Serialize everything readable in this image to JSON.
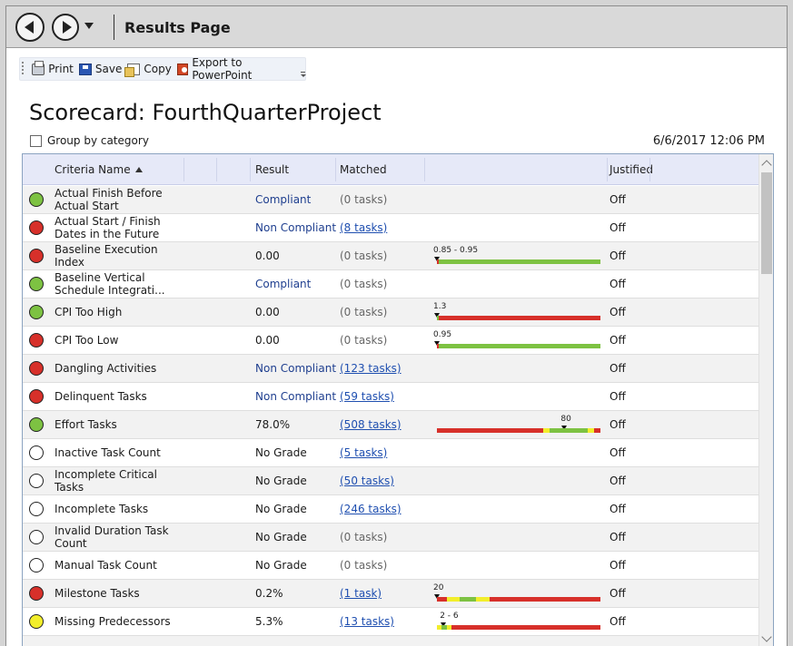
{
  "window": {
    "title": "Results Page"
  },
  "toolbar": {
    "print_label": "Print",
    "save_label": "Save",
    "copy_label": "Copy",
    "export_label": "Export to PowerPoint"
  },
  "scorecard": {
    "title": "Scorecard: FourthQuarterProject",
    "group_by_label": "Group by category",
    "group_by_checked": false,
    "date": "6/6/2017 12:06 PM"
  },
  "columns": {
    "name": "Criteria Name",
    "result": "Result",
    "matched": "Matched",
    "justified": "Justified"
  },
  "colors": {
    "green": "#7dc242",
    "red": "#d7302a",
    "yellow": "#f2ee2b",
    "link": "#1f4fb0"
  },
  "rows": [
    {
      "status": "green",
      "name": "Actual Finish Before Actual Start",
      "result": "Compliant",
      "matched": "(0 tasks)",
      "matched_link": false,
      "justified": "Off"
    },
    {
      "status": "red",
      "name": "Actual Start / Finish Dates in the Future",
      "result": "Non Compliant",
      "matched": "(8 tasks)",
      "matched_link": true,
      "justified": "Off"
    },
    {
      "status": "red",
      "name": "Baseline Execution Index",
      "result": "0.00",
      "matched": "(0 tasks)",
      "matched_link": false,
      "justified": "Off",
      "gauge": {
        "label": "0.85 - 0.95",
        "marker": 0.0,
        "segments": [
          {
            "color": "red",
            "fraction": 0.01
          },
          {
            "color": "green",
            "fraction": 0.99
          }
        ]
      }
    },
    {
      "status": "green",
      "name": "Baseline Vertical Schedule Integrati...",
      "result": "Compliant",
      "matched": "(0 tasks)",
      "matched_link": false,
      "justified": "Off"
    },
    {
      "status": "green",
      "name": "CPI Too High",
      "result": "0.00",
      "matched": "(0 tasks)",
      "matched_link": false,
      "justified": "Off",
      "gauge": {
        "label": "1.3",
        "marker": 0.0,
        "segments": [
          {
            "color": "green",
            "fraction": 0.01
          },
          {
            "color": "red",
            "fraction": 0.99
          }
        ]
      }
    },
    {
      "status": "red",
      "name": "CPI Too Low",
      "result": "0.00",
      "matched": "(0 tasks)",
      "matched_link": false,
      "justified": "Off",
      "gauge": {
        "label": "0.95",
        "marker": 0.0,
        "segments": [
          {
            "color": "red",
            "fraction": 0.01
          },
          {
            "color": "green",
            "fraction": 0.99
          }
        ]
      }
    },
    {
      "status": "red",
      "name": "Dangling Activities",
      "result": "Non Compliant",
      "matched": "(123 tasks)",
      "matched_link": true,
      "justified": "Off"
    },
    {
      "status": "red",
      "name": "Delinquent Tasks",
      "result": "Non Compliant",
      "matched": "(59 tasks)",
      "matched_link": true,
      "justified": "Off"
    },
    {
      "status": "green",
      "name": "Effort Tasks",
      "result": "78.0%",
      "matched": "(508 tasks)",
      "matched_link": true,
      "justified": "Off",
      "gauge": {
        "label": "80",
        "marker": 0.78,
        "segments": [
          {
            "color": "red",
            "fraction": 0.65
          },
          {
            "color": "yellow",
            "fraction": 0.04
          },
          {
            "color": "green",
            "fraction": 0.23
          },
          {
            "color": "yellow",
            "fraction": 0.04
          },
          {
            "color": "red",
            "fraction": 0.04
          }
        ]
      }
    },
    {
      "status": "none",
      "name": "Inactive Task Count",
      "result": "No Grade",
      "matched": "(5 tasks)",
      "matched_link": true,
      "justified": "Off"
    },
    {
      "status": "none",
      "name": "Incomplete Critical Tasks",
      "result": "No Grade",
      "matched": "(50 tasks)",
      "matched_link": true,
      "justified": "Off"
    },
    {
      "status": "none",
      "name": "Incomplete Tasks",
      "result": "No Grade",
      "matched": "(246 tasks)",
      "matched_link": true,
      "justified": "Off"
    },
    {
      "status": "none",
      "name": "Invalid Duration Task Count",
      "result": "No Grade",
      "matched": "(0 tasks)",
      "matched_link": false,
      "justified": "Off"
    },
    {
      "status": "none",
      "name": "Manual Task Count",
      "result": "No Grade",
      "matched": "(0 tasks)",
      "matched_link": false,
      "justified": "Off"
    },
    {
      "status": "red",
      "name": "Milestone Tasks",
      "result": "0.2%",
      "matched": "(1 task)",
      "matched_link": true,
      "justified": "Off",
      "gauge": {
        "label": "20",
        "marker": 0.0,
        "segments": [
          {
            "color": "red",
            "fraction": 0.06
          },
          {
            "color": "yellow",
            "fraction": 0.08
          },
          {
            "color": "green",
            "fraction": 0.1
          },
          {
            "color": "yellow",
            "fraction": 0.08
          },
          {
            "color": "red",
            "fraction": 0.68
          }
        ]
      }
    },
    {
      "status": "yellow",
      "name": "Missing Predecessors",
      "result": "5.3%",
      "matched": "(13 tasks)",
      "matched_link": true,
      "justified": "Off",
      "gauge": {
        "label": "2 - 6",
        "marker": 0.04,
        "segments": [
          {
            "color": "yellow",
            "fraction": 0.03
          },
          {
            "color": "green",
            "fraction": 0.03
          },
          {
            "color": "yellow",
            "fraction": 0.03
          },
          {
            "color": "red",
            "fraction": 0.91
          }
        ]
      }
    }
  ]
}
